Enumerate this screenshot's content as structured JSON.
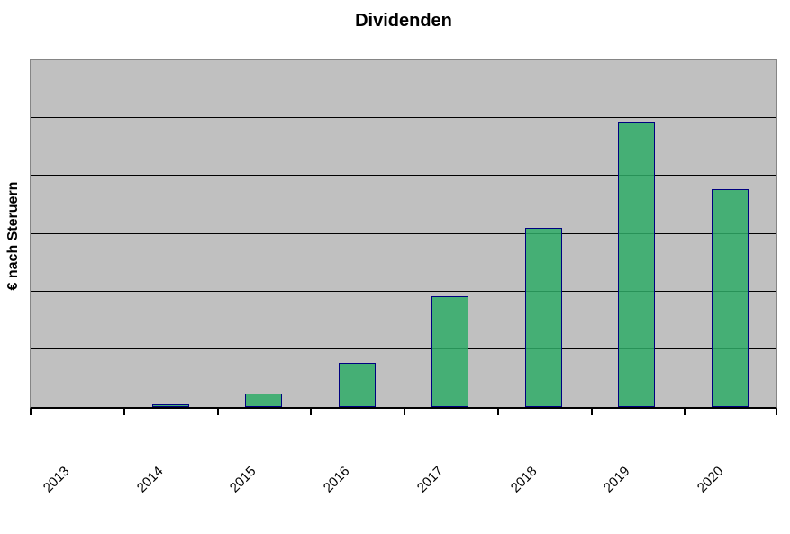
{
  "title": "Dividenden",
  "y_axis_label": "€ nach Steruern",
  "chart_data": {
    "type": "bar",
    "title": "Dividenden",
    "xlabel": "",
    "ylabel": "€ nach Steruern",
    "categories": [
      "2013",
      "2014",
      "2015",
      "2016",
      "2017",
      "2018",
      "2019",
      "2020"
    ],
    "values": [
      0,
      0.05,
      0.24,
      0.77,
      1.91,
      3.1,
      4.93,
      3.77
    ],
    "ylim": [
      0,
      6
    ],
    "y_tick_labels_visible": false,
    "gridline_step": 1,
    "grid": "horizontal gridlines on",
    "legend_position": "none",
    "x_tick_rotation_deg": 45,
    "note": "y-axis has no numeric tick labels; values estimated in gridline units (1 unit = 1 horizontal gridline interval, plot top = 6)"
  },
  "colors": {
    "plot_background": "#C0C0C0",
    "plot_border": "#858585",
    "gridline": "#000000",
    "axis_line": "#000000",
    "bar_fill": "#42B476",
    "bar_fill_rgba": "rgba(47,172,103,0.85)",
    "bar_border": "#000080",
    "text": "#000000",
    "page_background": "#FFFFFF"
  }
}
